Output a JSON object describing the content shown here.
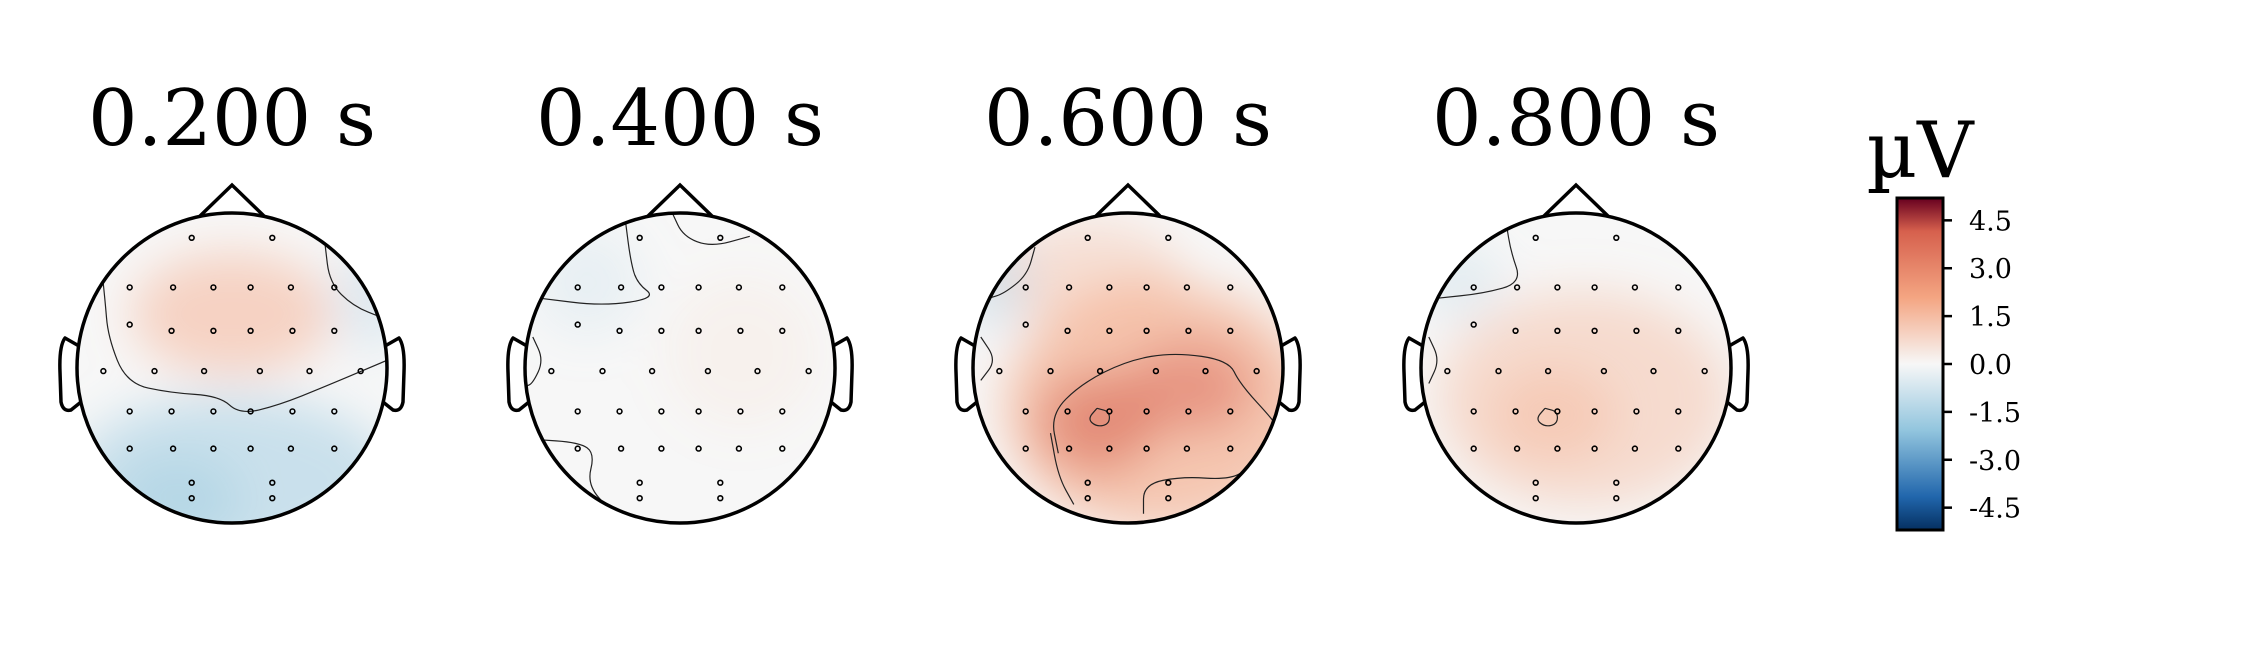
{
  "chart_data": {
    "type": "heatmap",
    "plot": "eeg-topomap",
    "colormap": "RdBu_r",
    "panels": [
      {
        "title": "0.200 s",
        "time_s": 0.2,
        "pattern": "frontal-positive-posterior-negative"
      },
      {
        "title": "0.400 s",
        "time_s": 0.4,
        "pattern": "near-zero"
      },
      {
        "title": "0.600 s",
        "time_s": 0.6,
        "pattern": "broad-positive-central-parietal"
      },
      {
        "title": "0.800 s",
        "time_s": 0.8,
        "pattern": "weak-positive"
      }
    ],
    "colorbar": {
      "label": "µV",
      "vmin": -5.2,
      "vmax": 5.2,
      "ticks": [
        4.5,
        3.0,
        1.5,
        0.0,
        -1.5,
        -3.0,
        -4.5
      ],
      "tick_labels": [
        "4.5",
        "3.0",
        "1.5",
        "0.0",
        "-1.5",
        "-3.0",
        "-4.5"
      ]
    },
    "colors": {
      "negative_max": "#053061",
      "negative": "#2166ac",
      "negative_light": "#92c5de",
      "zero": "#f7f7f7",
      "positive_light": "#f4a582",
      "positive": "#d6604d",
      "positive_max": "#67001f"
    }
  }
}
